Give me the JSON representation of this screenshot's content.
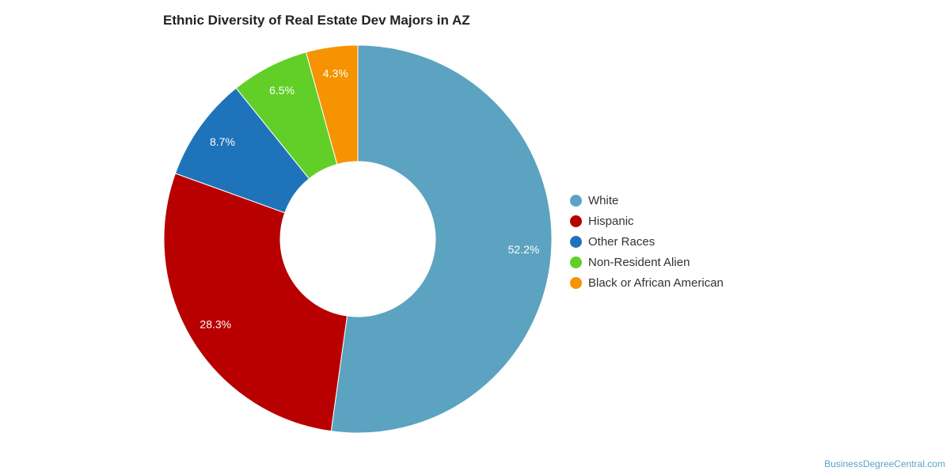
{
  "chart_data": {
    "type": "pie",
    "title": "Ethnic Diversity of Real Estate Dev Majors in AZ",
    "donut": true,
    "categories": [
      "White",
      "Hispanic",
      "Other Races",
      "Non-Resident Alien",
      "Black or African American"
    ],
    "values": [
      52.2,
      28.3,
      8.7,
      6.5,
      4.3
    ],
    "data_labels": [
      "52.2%",
      "28.3%",
      "8.7%",
      "6.5%",
      "4.3%"
    ],
    "colors": [
      "#5ba3c0",
      "#b80000",
      "#1f73ba",
      "#62cf28",
      "#f59300"
    ],
    "legend_position": "right"
  },
  "watermark": "BusinessDegreeCentral.com"
}
